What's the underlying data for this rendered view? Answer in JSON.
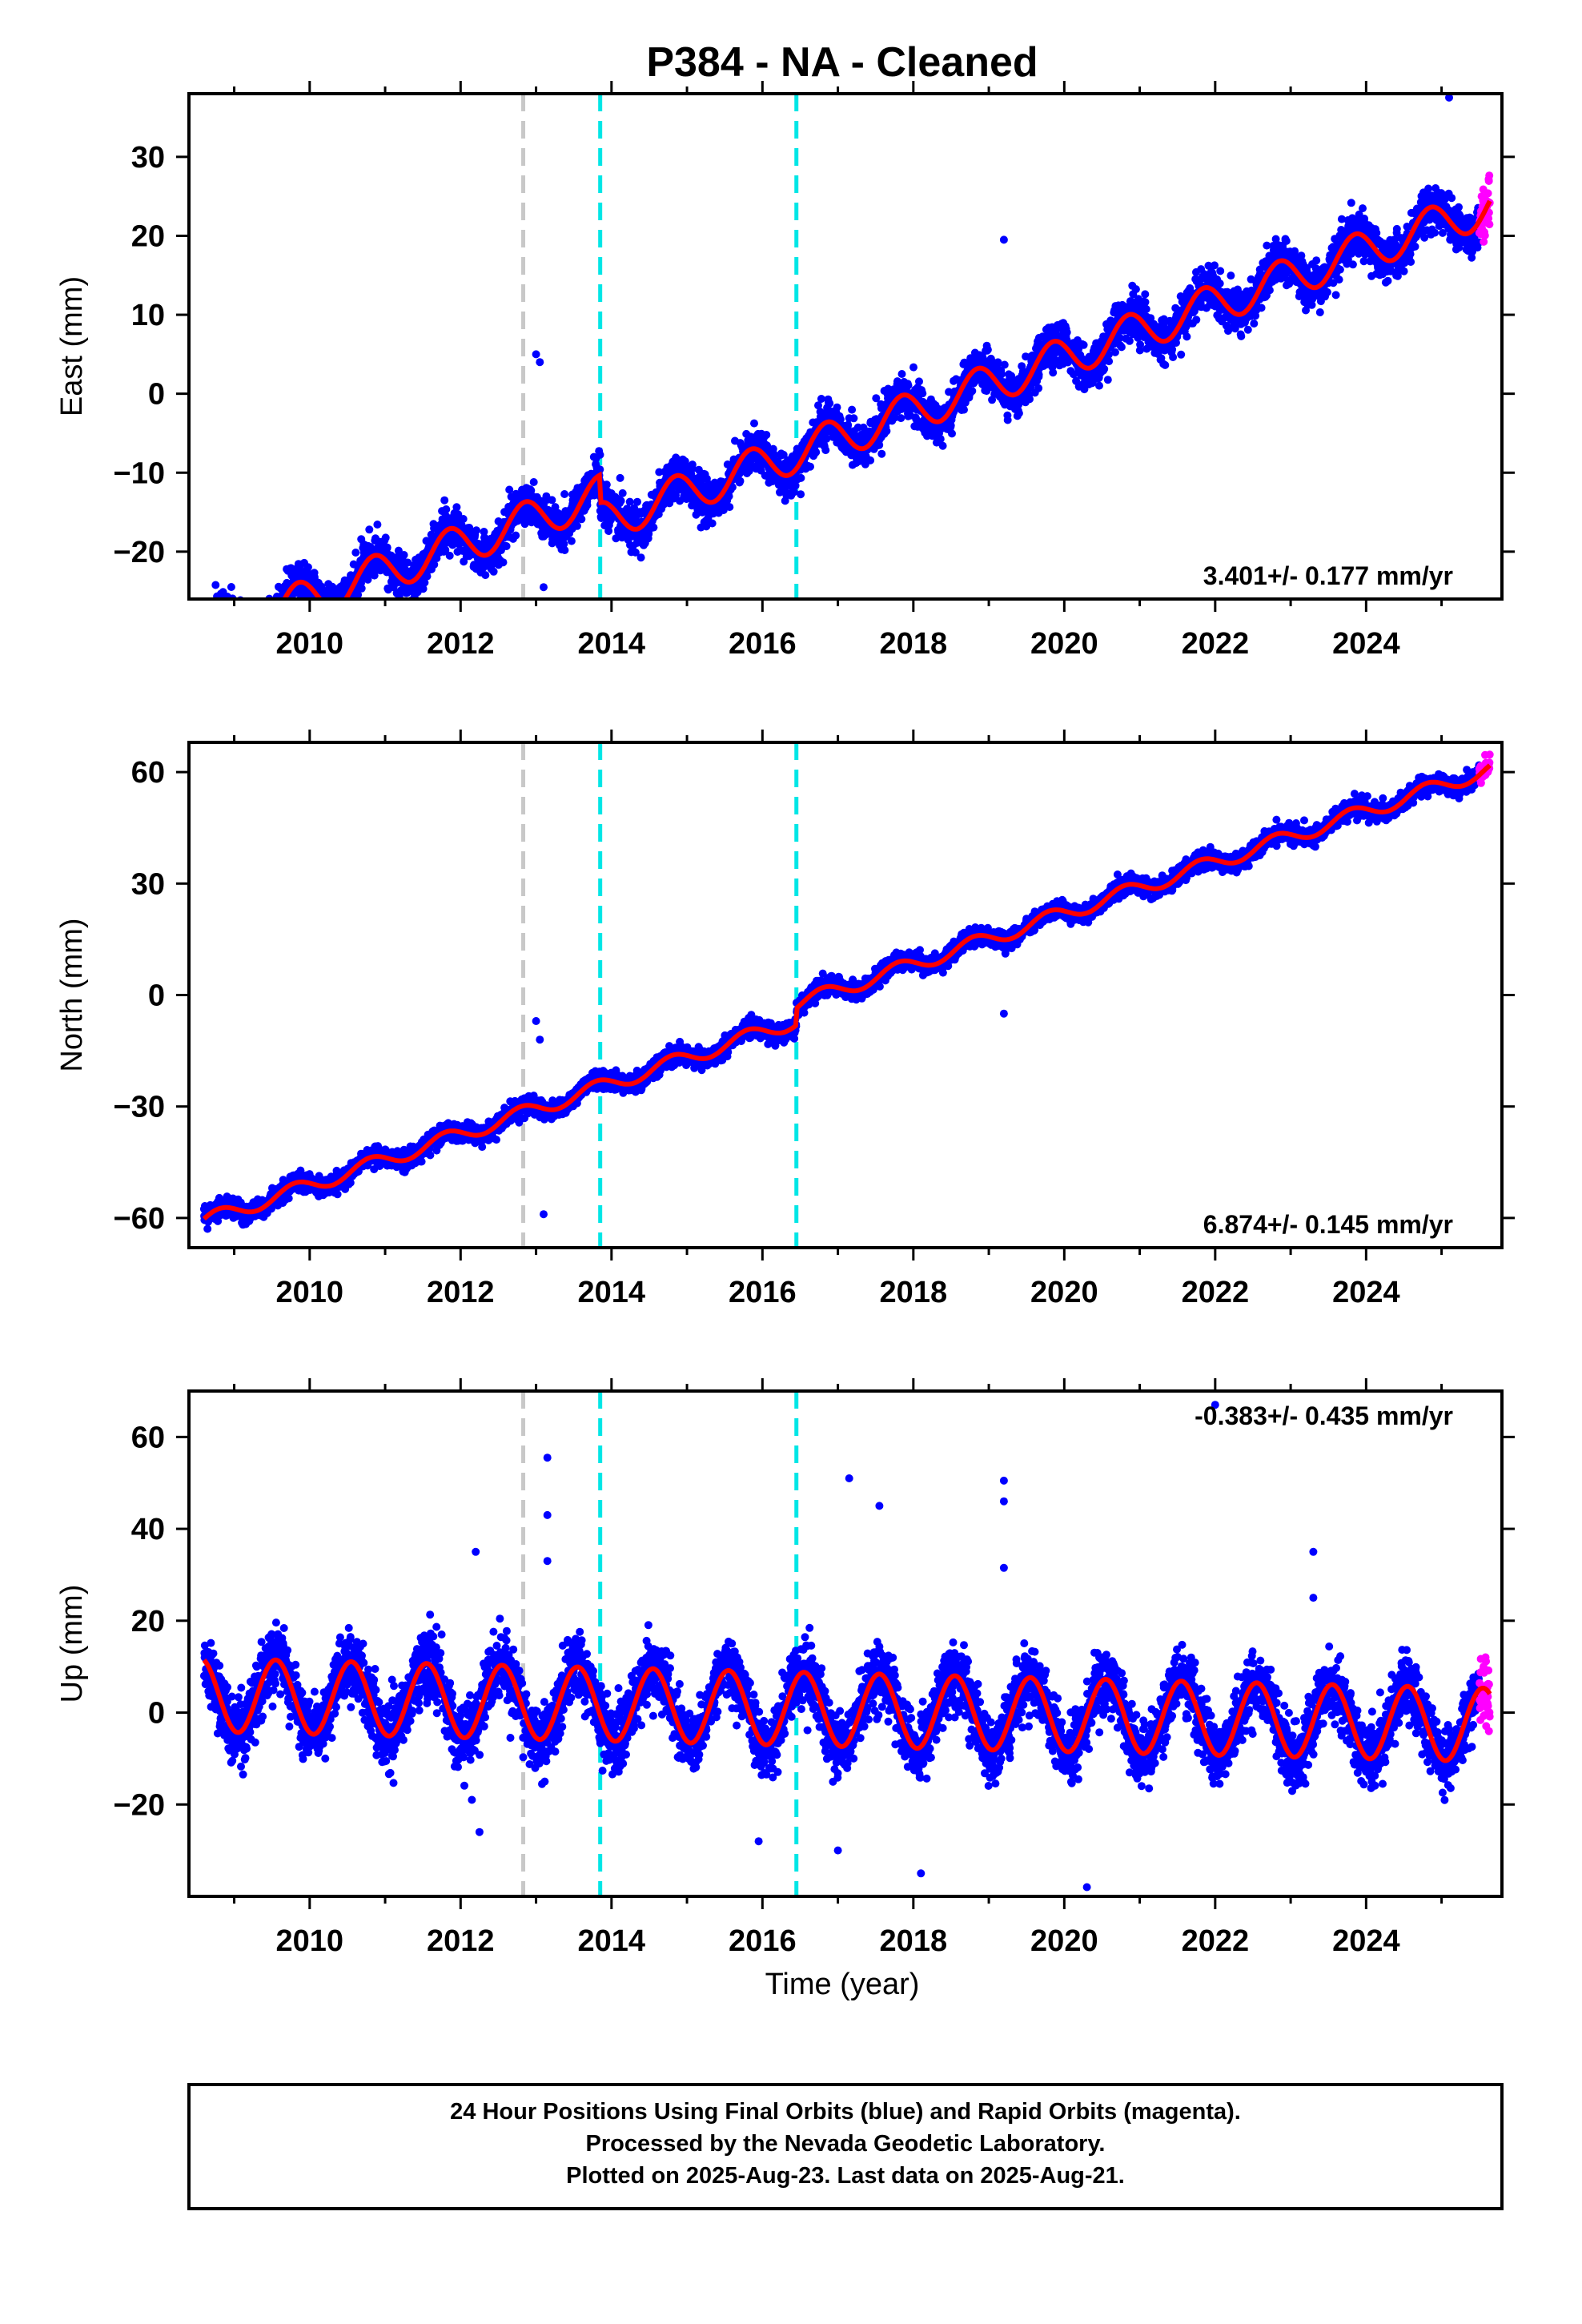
{
  "title": "P384  - NA - Cleaned",
  "xlabel": "Time (year)",
  "colors": {
    "final": "#0000ff",
    "rapid": "#ff00ff",
    "model": "#ff0000",
    "event_gray": "#c8c8c8",
    "event_cyan": "#00e6e6"
  },
  "footer": {
    "line1": "24 Hour Positions Using Final Orbits (blue) and Rapid Orbits (magenta).",
    "line2": "Processed by the Nevada Geodetic Laboratory.",
    "line3": "Plotted on 2025-Aug-23. Last data on 2025-Aug-21."
  },
  "chart_data": [
    {
      "type": "scatter",
      "component": "East",
      "ylabel": "East (mm)",
      "rate": "3.401+/- 0.177 mm/yr",
      "rate_placement": "bottom-right",
      "xlim": [
        2008.4,
        2025.8
      ],
      "ylim": [
        -26,
        38
      ],
      "yticks": [
        -20,
        -10,
        0,
        10,
        20,
        30
      ],
      "xticks": [
        2010,
        2012,
        2014,
        2016,
        2018,
        2020,
        2022,
        2024
      ],
      "data_start": 2008.6,
      "data_end": 2025.64,
      "rapid_start": 2025.5,
      "model": {
        "ref_epoch": 2016.0,
        "offset": -5.5,
        "velocity": 3.401,
        "annual_amplitude": 2.5,
        "annual_phase": 0.6
      },
      "breaks": [
        {
          "epoch": 2013.85,
          "offset": -3.5
        }
      ],
      "scatter_sd": 1.3,
      "outliers": [
        [
          2013.0,
          5.0
        ],
        [
          2013.05,
          4.0
        ],
        [
          2013.1,
          -24.5
        ],
        [
          2019.2,
          19.5
        ],
        [
          2022.25,
          13.0
        ],
        [
          2023.6,
          12.5
        ],
        [
          2025.1,
          37.5
        ]
      ],
      "events": [
        {
          "epoch": 2012.83,
          "color": "gray"
        },
        {
          "epoch": 2013.85,
          "color": "cyan"
        },
        {
          "epoch": 2016.45,
          "color": "cyan"
        }
      ]
    },
    {
      "type": "scatter",
      "component": "North",
      "ylabel": "North (mm)",
      "rate": "6.874+/- 0.145 mm/yr",
      "rate_placement": "bottom-right",
      "xlim": [
        2008.4,
        2025.8
      ],
      "ylim": [
        -68,
        68
      ],
      "yticks": [
        -60,
        -30,
        0,
        30,
        60
      ],
      "xticks": [
        2010,
        2012,
        2014,
        2016,
        2018,
        2020,
        2022,
        2024
      ],
      "data_start": 2008.6,
      "data_end": 2025.64,
      "rapid_start": 2025.5,
      "model": {
        "ref_epoch": 2016.0,
        "offset": -10.0,
        "velocity": 6.874,
        "annual_amplitude": 2.0,
        "annual_phase": 0.55
      },
      "breaks": [
        {
          "epoch": 2016.45,
          "offset": 4.5
        }
      ],
      "scatter_sd": 1.2,
      "outliers": [
        [
          2013.0,
          -7.0
        ],
        [
          2013.05,
          -12.0
        ],
        [
          2013.1,
          -59.0
        ],
        [
          2019.2,
          -5.0
        ]
      ],
      "events": [
        {
          "epoch": 2012.83,
          "color": "gray"
        },
        {
          "epoch": 2013.85,
          "color": "cyan"
        },
        {
          "epoch": 2016.45,
          "color": "cyan"
        }
      ]
    },
    {
      "type": "scatter",
      "component": "Up",
      "ylabel": "Up (mm)",
      "rate": "-0.383+/- 0.435 mm/yr",
      "rate_placement": "top-right",
      "xlim": [
        2008.4,
        2025.8
      ],
      "ylim": [
        -40,
        70
      ],
      "yticks": [
        -20,
        0,
        20,
        40,
        60
      ],
      "xticks": [
        2010,
        2012,
        2014,
        2016,
        2018,
        2020,
        2022,
        2024
      ],
      "data_start": 2008.6,
      "data_end": 2025.64,
      "rapid_start": 2025.5,
      "model": {
        "ref_epoch": 2016.0,
        "offset": 1.0,
        "velocity": -0.383,
        "annual_amplitude": 8.0,
        "annual_phase": 0.3
      },
      "breaks": [],
      "scatter_sd": 3.5,
      "outliers": [
        [
          2013.15,
          55.5
        ],
        [
          2013.15,
          43.0
        ],
        [
          2013.15,
          33.0
        ],
        [
          2012.2,
          35.0
        ],
        [
          2012.25,
          -26.0
        ],
        [
          2012.15,
          -19.0
        ],
        [
          2017.15,
          51.0
        ],
        [
          2017.55,
          45.0
        ],
        [
          2019.2,
          50.5
        ],
        [
          2019.2,
          46.0
        ],
        [
          2019.2,
          31.5
        ],
        [
          2018.1,
          -35.0
        ],
        [
          2020.3,
          -38.0
        ],
        [
          2022.0,
          67.0
        ],
        [
          2023.3,
          35.0
        ],
        [
          2023.3,
          25.0
        ],
        [
          2015.95,
          -28.0
        ],
        [
          2017.0,
          -30.0
        ]
      ],
      "events": [
        {
          "epoch": 2012.83,
          "color": "gray"
        },
        {
          "epoch": 2013.85,
          "color": "cyan"
        },
        {
          "epoch": 2016.45,
          "color": "cyan"
        }
      ]
    }
  ]
}
